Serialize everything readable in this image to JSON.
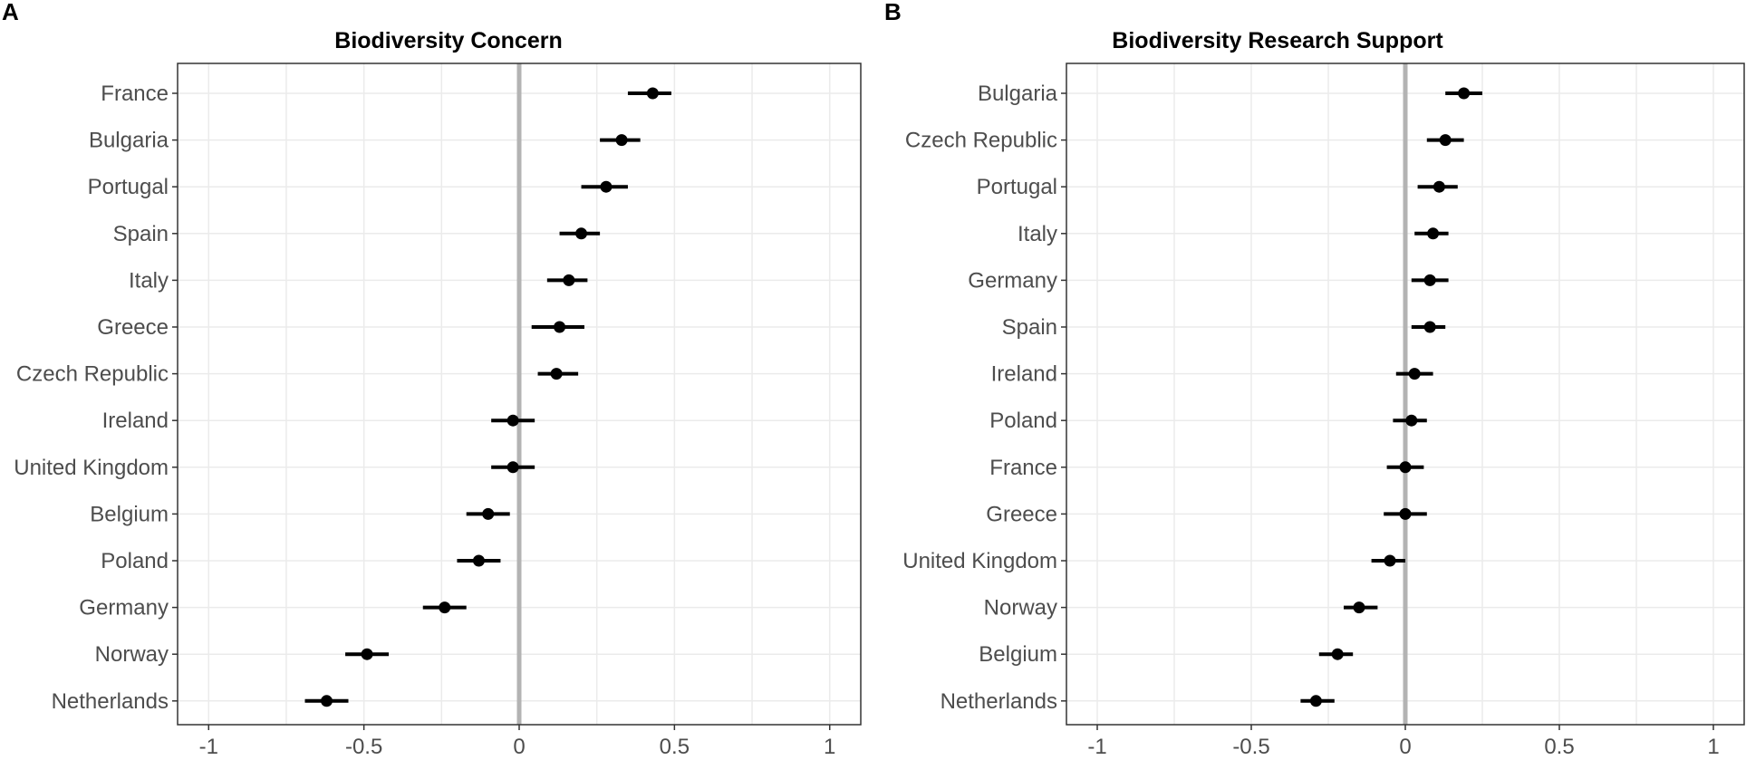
{
  "chart_data": [
    {
      "panel": "A",
      "type": "scatter",
      "subtype": "dot-and-whisker",
      "title": "Biodiversity Concern",
      "xlabel": "",
      "ylabel": "",
      "xlim": [
        -1.1,
        1.1
      ],
      "xticks": [
        -1,
        -0.5,
        0,
        0.5,
        1
      ],
      "xtick_labels": [
        "-1",
        "-0.5",
        "0",
        "0.5",
        "1"
      ],
      "reference_line": 0,
      "points": [
        {
          "label": "France",
          "estimate": 0.43,
          "lower": 0.35,
          "upper": 0.49
        },
        {
          "label": "Bulgaria",
          "estimate": 0.33,
          "lower": 0.26,
          "upper": 0.39
        },
        {
          "label": "Portugal",
          "estimate": 0.28,
          "lower": 0.2,
          "upper": 0.35
        },
        {
          "label": "Spain",
          "estimate": 0.2,
          "lower": 0.13,
          "upper": 0.26
        },
        {
          "label": "Italy",
          "estimate": 0.16,
          "lower": 0.09,
          "upper": 0.22
        },
        {
          "label": "Greece",
          "estimate": 0.13,
          "lower": 0.04,
          "upper": 0.21
        },
        {
          "label": "Czech Republic",
          "estimate": 0.12,
          "lower": 0.06,
          "upper": 0.19
        },
        {
          "label": "Ireland",
          "estimate": -0.02,
          "lower": -0.09,
          "upper": 0.05
        },
        {
          "label": "United Kingdom",
          "estimate": -0.02,
          "lower": -0.09,
          "upper": 0.05
        },
        {
          "label": "Belgium",
          "estimate": -0.1,
          "lower": -0.17,
          "upper": -0.03
        },
        {
          "label": "Poland",
          "estimate": -0.13,
          "lower": -0.2,
          "upper": -0.06
        },
        {
          "label": "Germany",
          "estimate": -0.24,
          "lower": -0.31,
          "upper": -0.17
        },
        {
          "label": "Norway",
          "estimate": -0.49,
          "lower": -0.56,
          "upper": -0.42
        },
        {
          "label": "Netherlands",
          "estimate": -0.62,
          "lower": -0.69,
          "upper": -0.55
        }
      ]
    },
    {
      "panel": "B",
      "type": "scatter",
      "subtype": "dot-and-whisker",
      "title": "Biodiversity Research Support",
      "xlabel": "",
      "ylabel": "",
      "xlim": [
        -1.1,
        1.1
      ],
      "xticks": [
        -1,
        -0.5,
        0,
        0.5,
        1
      ],
      "xtick_labels": [
        "-1",
        "-0.5",
        "0",
        "0.5",
        "1"
      ],
      "reference_line": 0,
      "points": [
        {
          "label": "Bulgaria",
          "estimate": 0.19,
          "lower": 0.13,
          "upper": 0.25
        },
        {
          "label": "Czech Republic",
          "estimate": 0.13,
          "lower": 0.07,
          "upper": 0.19
        },
        {
          "label": "Portugal",
          "estimate": 0.11,
          "lower": 0.04,
          "upper": 0.17
        },
        {
          "label": "Italy",
          "estimate": 0.09,
          "lower": 0.03,
          "upper": 0.14
        },
        {
          "label": "Germany",
          "estimate": 0.08,
          "lower": 0.02,
          "upper": 0.14
        },
        {
          "label": "Spain",
          "estimate": 0.08,
          "lower": 0.02,
          "upper": 0.13
        },
        {
          "label": "Ireland",
          "estimate": 0.03,
          "lower": -0.03,
          "upper": 0.09
        },
        {
          "label": "Poland",
          "estimate": 0.02,
          "lower": -0.04,
          "upper": 0.07
        },
        {
          "label": "France",
          "estimate": 0.0,
          "lower": -0.06,
          "upper": 0.06
        },
        {
          "label": "Greece",
          "estimate": 0.0,
          "lower": -0.07,
          "upper": 0.07
        },
        {
          "label": "United Kingdom",
          "estimate": -0.05,
          "lower": -0.11,
          "upper": 0.0
        },
        {
          "label": "Norway",
          "estimate": -0.15,
          "lower": -0.2,
          "upper": -0.09
        },
        {
          "label": "Belgium",
          "estimate": -0.22,
          "lower": -0.28,
          "upper": -0.17
        },
        {
          "label": "Netherlands",
          "estimate": -0.29,
          "lower": -0.34,
          "upper": -0.23
        }
      ]
    }
  ]
}
